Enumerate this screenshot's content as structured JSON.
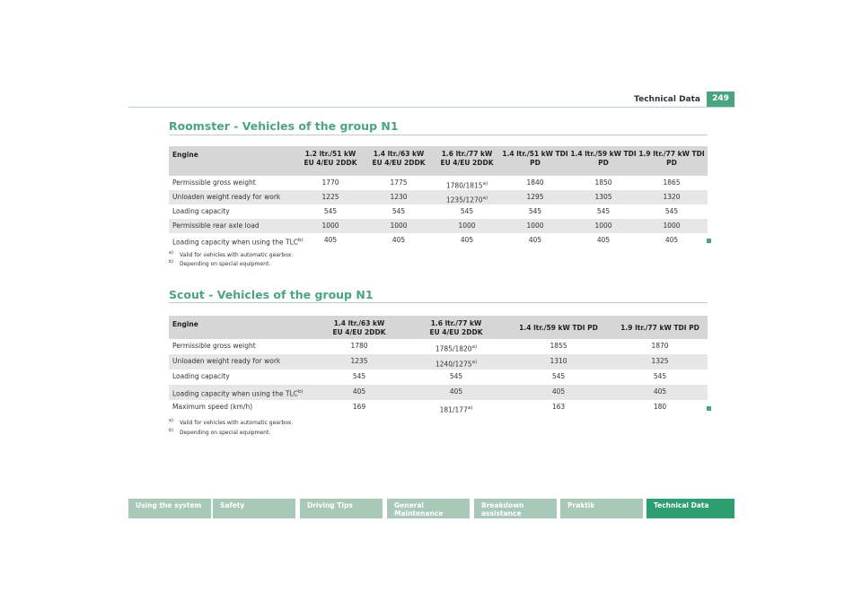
{
  "header": {
    "section": "Technical Data",
    "page": "249"
  },
  "sections": [
    {
      "title": "Roomster - Vehicles of the group N1",
      "table": {
        "columns": [
          "Engine",
          "1.2 ltr./51 kW\nEU 4/EU 2DDK",
          "1.4 ltr./63 kW\nEU 4/EU 2DDK",
          "1.6 ltr./77 kW\nEU 4/EU 2DDK",
          "1.4 ltr./51 kW TDI\nPD",
          "1.4 ltr./59 kW TDI\nPD",
          "1.9 ltr./77 kW TDI\nPD"
        ],
        "rows": [
          [
            "Permissible gross weight",
            "1770",
            "1775",
            {
              "text": "1780/1815",
              "note": "a)"
            },
            "1840",
            "1850",
            "1865"
          ],
          [
            "Unloaden weight ready for work",
            "1225",
            "1230",
            {
              "text": "1235/1270",
              "note": "a)"
            },
            "1295",
            "1305",
            "1320"
          ],
          [
            "Loading capacity",
            "545",
            "545",
            "545",
            "545",
            "545",
            "545"
          ],
          [
            "Permissible rear axle load",
            "1000",
            "1000",
            "1000",
            "1000",
            "1000",
            "1000"
          ],
          [
            {
              "text": "Loading capacity when using the TLC",
              "note": "b)"
            },
            "405",
            "405",
            "405",
            "405",
            "405",
            "405"
          ]
        ]
      },
      "footnotes": [
        {
          "mark": "a)",
          "text": "Valid for vehicles with automatic gearbox."
        },
        {
          "mark": "b)",
          "text": "Depending on special equipment."
        }
      ]
    },
    {
      "title": "Scout - Vehicles of the group N1",
      "table": {
        "columns": [
          "Engine",
          "1.4 ltr./63 kW\nEU 4/EU 2DDK",
          "1.6 ltr./77 kW\nEU 4/EU 2DDK",
          "1.4 ltr./59 kW TDI PD",
          "1.9 ltr./77 kW TDI PD"
        ],
        "rows": [
          [
            "Permissible gross weight",
            "1780",
            {
              "text": "1785/1820",
              "note": "a)"
            },
            "1855",
            "1870"
          ],
          [
            "Unloaden weight ready for work",
            "1235",
            {
              "text": "1240/1275",
              "note": "a)"
            },
            "1310",
            "1325"
          ],
          [
            "Loading capacity",
            "545",
            "545",
            "545",
            "545"
          ],
          [
            {
              "text": "Loading capacity when using the TLC",
              "note": "b)"
            },
            "405",
            "405",
            "405",
            "405"
          ],
          [
            "Maximum speed (km/h)",
            "169",
            {
              "text": "181/177",
              "note": "a)"
            },
            "163",
            "180"
          ]
        ]
      },
      "footnotes": [
        {
          "mark": "a)",
          "text": "Valid for vehicles with automatic gearbox."
        },
        {
          "mark": "b)",
          "text": "Depending on special equipment."
        }
      ]
    }
  ],
  "nav": [
    "Using the system",
    "Safety",
    "Driving Tips",
    "General Maintenance",
    "Breakdown assistance",
    "Praktik",
    "Technical Data"
  ]
}
